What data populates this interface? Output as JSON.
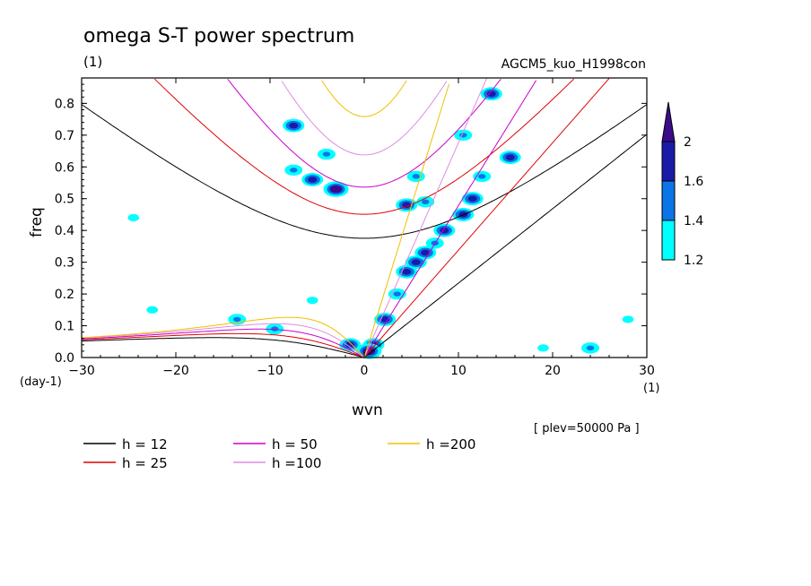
{
  "header": {
    "title": "omega S-T power spectrum",
    "unit": "(1)",
    "experiment": "AGCM5_kuo_H1998con",
    "level": "[ plev=50000 Pa ]"
  },
  "axes": {
    "x_unit": "(1)",
    "y_unit": "(day-1)"
  },
  "colors": {
    "fill_1_2": "#00ffff",
    "fill_1_4": "#0b74e6",
    "fill_1_6": "#1a1aa8",
    "fill_2": "#3b0c8a",
    "h12": "#000000",
    "h25": "#e00000",
    "h50": "#cc00cc",
    "h100": "#e08ce0",
    "h200": "#f0c000"
  },
  "colorbar": {
    "labels": [
      "1.2",
      "1.4",
      "1.6",
      "2"
    ],
    "colors": [
      "#00ffff",
      "#0b74e6",
      "#1a1aa8",
      "#3b0c8a"
    ]
  },
  "chart_data": {
    "type": "heatmap",
    "title": "omega S-T power spectrum",
    "xlabel": "wvn",
    "ylabel": "freq",
    "xlim": [
      -30,
      30
    ],
    "ylim": [
      0,
      0.88
    ],
    "x_ticks": [
      -30,
      -20,
      -10,
      0,
      10,
      20,
      30
    ],
    "y_ticks": [
      0.0,
      0.1,
      0.2,
      0.3,
      0.4,
      0.5,
      0.6,
      0.7,
      0.8
    ],
    "x_tick_labels": [
      "−30",
      "−20",
      "−10",
      "0",
      "10",
      "20",
      "30"
    ],
    "y_tick_labels": [
      "0.0",
      "0.1",
      "0.2",
      "0.3",
      "0.4",
      "0.5",
      "0.6",
      "0.7",
      "0.8"
    ],
    "contour_levels": [
      1.2,
      1.4,
      1.6,
      2
    ],
    "legend": [
      {
        "label": "h = 12",
        "h": 12,
        "color": "#000000"
      },
      {
        "label": "h = 25",
        "h": 25,
        "color": "#e00000"
      },
      {
        "label": "h = 50",
        "h": 50,
        "color": "#cc00cc"
      },
      {
        "label": "h =100",
        "h": 100,
        "color": "#e08ce0"
      },
      {
        "label": "h =200",
        "h": 200,
        "color": "#f0c000"
      }
    ],
    "regions": [
      {
        "kx": 0.5,
        "w": 0.02,
        "level": 2.0
      },
      {
        "kx": 1.0,
        "w": 0.04,
        "level": 1.6
      },
      {
        "kx": -1.5,
        "w": 0.04,
        "level": 1.6
      },
      {
        "kx": 2.2,
        "w": 0.12,
        "level": 1.6
      },
      {
        "kx": 3.5,
        "w": 0.2,
        "level": 1.4
      },
      {
        "kx": 4.5,
        "w": 0.27,
        "level": 1.6
      },
      {
        "kx": 5.5,
        "w": 0.3,
        "level": 1.6
      },
      {
        "kx": 6.5,
        "w": 0.33,
        "level": 1.6
      },
      {
        "kx": 7.5,
        "w": 0.36,
        "level": 1.4
      },
      {
        "kx": 8.5,
        "w": 0.4,
        "level": 1.6
      },
      {
        "kx": 10.5,
        "w": 0.45,
        "level": 1.6
      },
      {
        "kx": 11.5,
        "w": 0.5,
        "level": 1.6
      },
      {
        "kx": 12.5,
        "w": 0.57,
        "level": 1.4
      },
      {
        "kx": 15.5,
        "w": 0.63,
        "level": 1.6
      },
      {
        "kx": 10.5,
        "w": 0.7,
        "level": 1.4
      },
      {
        "kx": 13.5,
        "w": 0.83,
        "level": 1.6
      },
      {
        "kx": 4.5,
        "w": 0.48,
        "level": 1.6
      },
      {
        "kx": 5.5,
        "w": 0.57,
        "level": 1.4
      },
      {
        "kx": 6.5,
        "w": 0.49,
        "level": 1.4
      },
      {
        "kx": -3.0,
        "w": 0.53,
        "level": 2.0
      },
      {
        "kx": -5.5,
        "w": 0.56,
        "level": 1.6
      },
      {
        "kx": -7.5,
        "w": 0.59,
        "level": 1.4
      },
      {
        "kx": -7.5,
        "w": 0.73,
        "level": 1.6
      },
      {
        "kx": -4.0,
        "w": 0.64,
        "level": 1.4
      },
      {
        "kx": -13.5,
        "w": 0.12,
        "level": 1.4
      },
      {
        "kx": -9.5,
        "w": 0.09,
        "level": 1.4
      },
      {
        "kx": -22.5,
        "w": 0.15,
        "level": 1.2
      },
      {
        "kx": -5.5,
        "w": 0.18,
        "level": 1.2
      },
      {
        "kx": 19.0,
        "w": 0.03,
        "level": 1.2
      },
      {
        "kx": 24.0,
        "w": 0.03,
        "level": 1.4
      },
      {
        "kx": -24.5,
        "w": 0.44,
        "level": 1.2
      },
      {
        "kx": 28.0,
        "w": 0.12,
        "level": 1.2
      }
    ]
  }
}
